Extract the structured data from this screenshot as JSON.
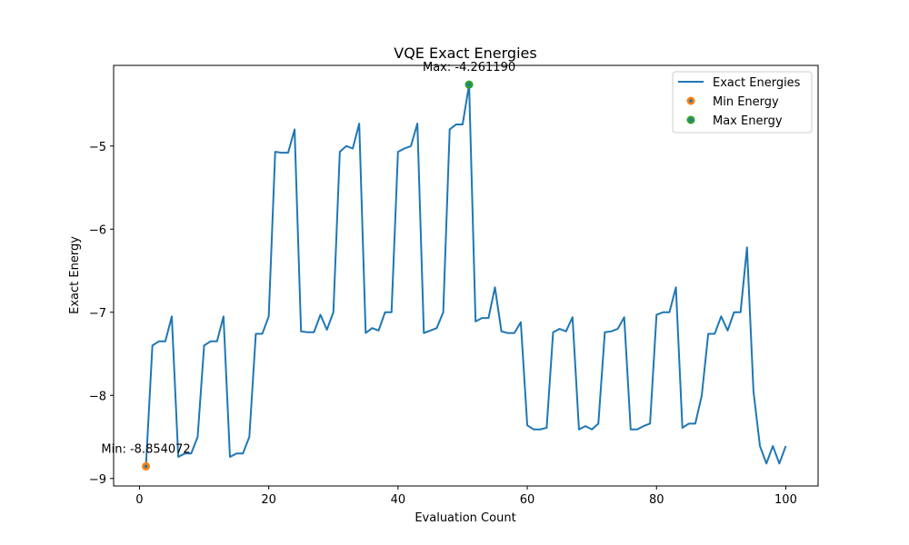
{
  "chart_data": {
    "type": "line",
    "title": "VQE Exact Energies",
    "xlabel": "Evaluation Count",
    "ylabel": "Exact Energy",
    "xlim": [
      -4,
      105
    ],
    "ylim": [
      -9.09,
      -4.03
    ],
    "xticks": [
      0,
      20,
      40,
      60,
      80,
      100
    ],
    "yticks": [
      -9,
      -8,
      -7,
      -6,
      -5
    ],
    "ytick_labels": [
      "−9",
      "−8",
      "−7",
      "−6",
      "−5"
    ],
    "grid": false,
    "legend_position": "top-right",
    "colors": {
      "line": "#1f77b4",
      "min_marker": "#ff7f0e",
      "max_marker": "#2ca02c"
    },
    "series": [
      {
        "name": "Exact Energies",
        "x": [
          1,
          2,
          3,
          4,
          5,
          6,
          7,
          8,
          9,
          10,
          11,
          12,
          13,
          14,
          15,
          16,
          17,
          18,
          19,
          20,
          21,
          22,
          23,
          24,
          25,
          26,
          27,
          28,
          29,
          30,
          31,
          32,
          33,
          34,
          35,
          36,
          37,
          38,
          39,
          40,
          41,
          42,
          43,
          44,
          45,
          46,
          47,
          48,
          49,
          50,
          51,
          52,
          53,
          54,
          55,
          56,
          57,
          58,
          59,
          60,
          61,
          62,
          63,
          64,
          65,
          66,
          67,
          68,
          69,
          70,
          71,
          72,
          73,
          74,
          75,
          76,
          77,
          78,
          79,
          80,
          81,
          82,
          83,
          84,
          85,
          86,
          87,
          88,
          89,
          90,
          91,
          92,
          93,
          94,
          95,
          96,
          97,
          98,
          99,
          100
        ],
        "y": [
          -8.854,
          -7.4,
          -7.35,
          -7.35,
          -7.05,
          -8.74,
          -8.7,
          -8.7,
          -8.5,
          -7.4,
          -7.35,
          -7.35,
          -7.05,
          -8.74,
          -8.7,
          -8.7,
          -8.5,
          -7.26,
          -7.26,
          -7.05,
          -5.07,
          -5.08,
          -5.08,
          -4.8,
          -7.23,
          -7.24,
          -7.24,
          -7.03,
          -7.21,
          -7.0,
          -5.07,
          -5.0,
          -5.03,
          -4.73,
          -7.25,
          -7.19,
          -7.22,
          -7.0,
          -7.0,
          -5.07,
          -5.03,
          -5.0,
          -4.73,
          -7.25,
          -7.22,
          -7.19,
          -7.0,
          -4.8,
          -4.74,
          -4.74,
          -4.261,
          -7.11,
          -7.07,
          -7.07,
          -6.7,
          -7.23,
          -7.25,
          -7.25,
          -7.12,
          -8.36,
          -8.41,
          -8.41,
          -8.39,
          -7.24,
          -7.2,
          -7.23,
          -7.06,
          -8.41,
          -8.37,
          -8.41,
          -8.34,
          -7.24,
          -7.23,
          -7.2,
          -7.06,
          -8.41,
          -8.41,
          -8.37,
          -8.34,
          -7.03,
          -7.0,
          -7.0,
          -6.7,
          -8.39,
          -8.34,
          -8.34,
          -8.0,
          -7.26,
          -7.26,
          -7.05,
          -7.22,
          -7.0,
          -7.0,
          -6.22,
          -7.95,
          -8.61,
          -8.82,
          -8.61,
          -8.82,
          -8.61
        ]
      },
      {
        "name": "Min Energy",
        "x": [
          1
        ],
        "y": [
          -8.854072
        ]
      },
      {
        "name": "Max Energy",
        "x": [
          51
        ],
        "y": [
          -4.26119
        ]
      }
    ],
    "annotations": [
      {
        "text": "Min: -8.854072",
        "x": 1,
        "y": -8.854072
      },
      {
        "text": "Max: -4.261190",
        "x": 51,
        "y": -4.26119
      }
    ]
  }
}
